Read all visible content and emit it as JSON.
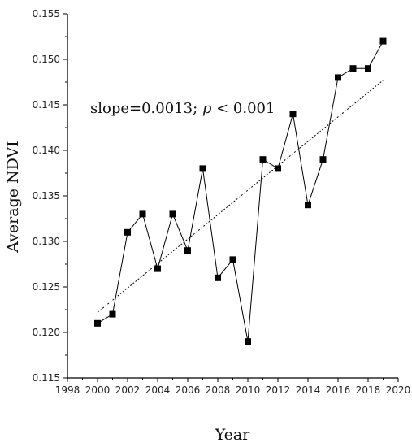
{
  "chart_data": {
    "type": "line",
    "xlabel": "Year",
    "ylabel": "Average NDVI",
    "xlim": [
      1998,
      2020
    ],
    "ylim": [
      0.115,
      0.155
    ],
    "x_ticks": [
      "1998",
      "2000",
      "2002",
      "2004",
      "2006",
      "2008",
      "2010",
      "2012",
      "2014",
      "2016",
      "2018",
      "2020"
    ],
    "y_ticks": [
      "0.115",
      "0.120",
      "0.125",
      "0.130",
      "0.135",
      "0.140",
      "0.145",
      "0.150",
      "0.155"
    ],
    "grid": false,
    "annotation": {
      "prefix": "slope=0.0013; ",
      "p_symbol": "p",
      "suffix": " < 0.001"
    },
    "series": [
      {
        "x": [
          2000,
          2001,
          2002,
          2003,
          2004,
          2005,
          2006,
          2007,
          2008,
          2009,
          2010,
          2011,
          2012,
          2013,
          2014,
          2015,
          2016,
          2017,
          2018,
          2019
        ],
        "y": [
          0.121,
          0.122,
          0.131,
          0.133,
          0.127,
          0.133,
          0.129,
          0.138,
          0.126,
          0.128,
          0.119,
          0.139,
          0.138,
          0.144,
          0.134,
          0.139,
          0.148,
          0.149,
          0.149,
          0.152
        ],
        "marker": "square",
        "color": "#000000"
      }
    ],
    "trend": {
      "x": [
        2000,
        2019
      ],
      "y": [
        0.1222,
        0.1477
      ],
      "style": "dotted"
    }
  }
}
